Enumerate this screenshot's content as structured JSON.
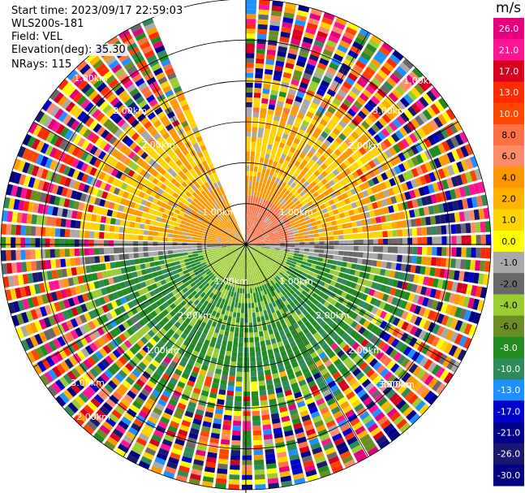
{
  "info": {
    "start_time": "Start time: 2023/09/17 22:59:03",
    "instrument": "WLS200s-181",
    "field": "Field: VEL",
    "elevation": "Elevation(deg): 35.30",
    "nrays": "NRays: 115"
  },
  "colorbar": {
    "unit": "m/s",
    "ticks": [
      "26.0",
      "21.0",
      "17.0",
      "13.0",
      "10.0",
      "8.0",
      "6.0",
      "4.0",
      "2.0",
      "1.0",
      "0.0",
      "-1.0",
      "-2.0",
      "-4.0",
      "-6.0",
      "-8.0",
      "-10.0",
      "-13.0",
      "-17.0",
      "-21.0",
      "-26.0",
      "-30.0"
    ],
    "colors": [
      "#e6007e",
      "#ff1493",
      "#d7001f",
      "#ff2a00",
      "#ff4500",
      "#ff7043",
      "#ff8c69",
      "#ff9800",
      "#ffb300",
      "#ffd400",
      "#ffff00",
      "#a9a9a9",
      "#696969",
      "#9acd32",
      "#6b8e23",
      "#228b22",
      "#2e8b57",
      "#1e90ff",
      "#0000cd",
      "#00008b",
      "#191970",
      "#000080"
    ]
  },
  "chart_data": {
    "type": "ppi",
    "field": "VEL",
    "units": "m/s",
    "elevation_deg": 35.3,
    "nrays": 115,
    "missing_sector_deg": [
      -25,
      0
    ],
    "range_rings_km": [
      0.5,
      1.0,
      1.5,
      2.0,
      2.5,
      3.0
    ],
    "range_labels": [
      "1.00km",
      "2.00km",
      "2.00km",
      "3.00km",
      "1.00km",
      "2.00km",
      "1.00km",
      "1.00km",
      "1.00km",
      "2.00km",
      "3.00km",
      "2.00km",
      "3.00km",
      "1.00km",
      "2.00km",
      "1.00km",
      "2.00km",
      "3.00km"
    ],
    "spokes_deg": [
      0,
      30,
      60,
      90,
      120,
      150,
      180,
      210,
      240,
      270,
      300,
      330
    ],
    "clim": [
      -30,
      26
    ],
    "seed": 181
  }
}
